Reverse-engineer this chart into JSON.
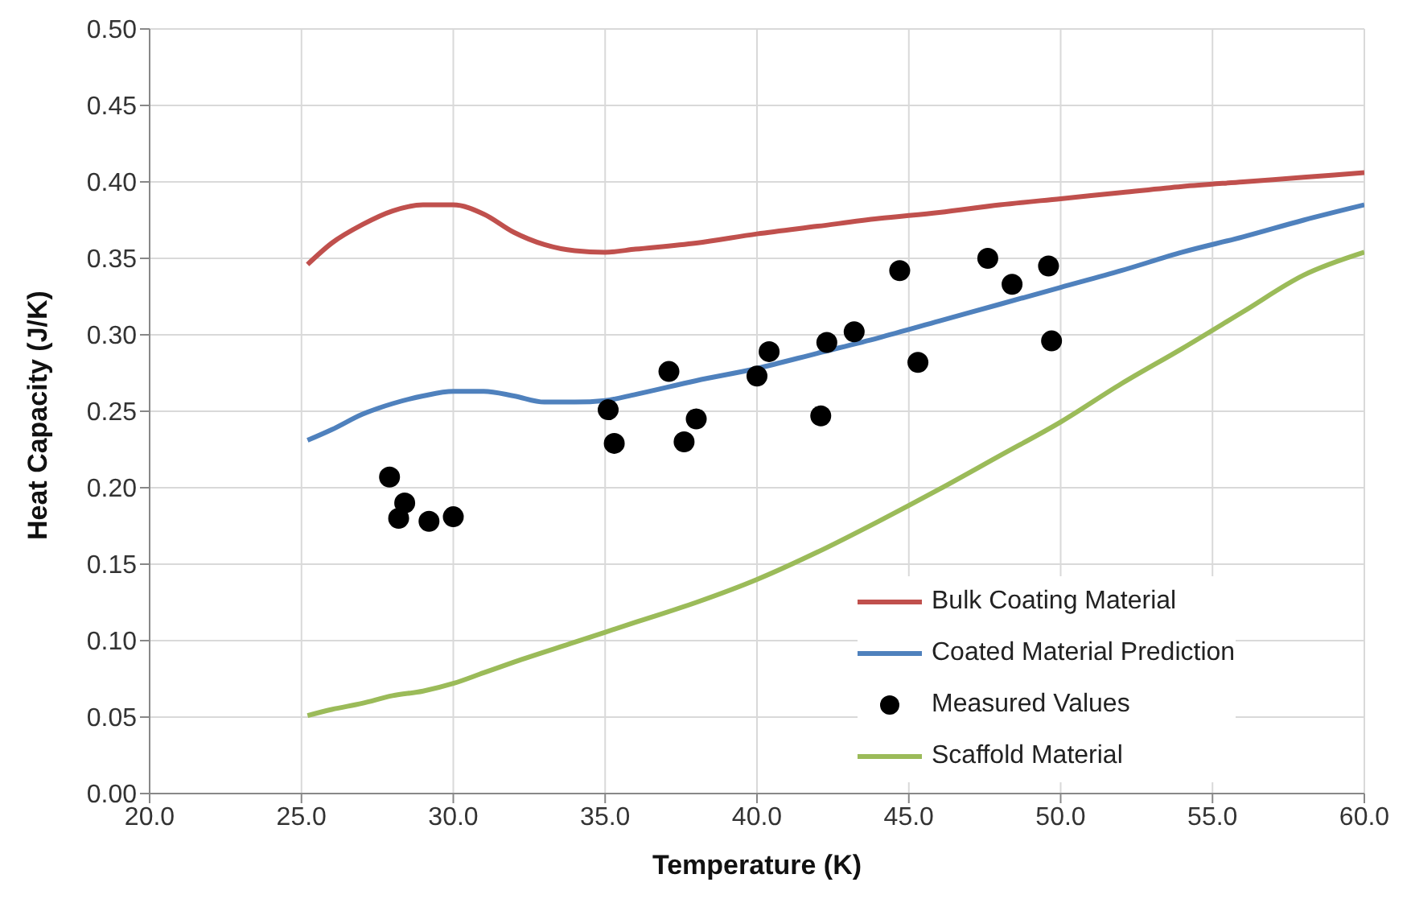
{
  "chart_data": {
    "type": "line",
    "xlabel": "Temperature (K)",
    "ylabel": "Heat Capacity  (J/K)",
    "xlim": [
      20,
      60
    ],
    "xticks": [
      {
        "value": 20,
        "label": "20.0"
      },
      {
        "value": 25,
        "label": "25.0"
      },
      {
        "value": 30,
        "label": "30.0"
      },
      {
        "value": 35,
        "label": "35.0"
      },
      {
        "value": 40,
        "label": "40.0"
      },
      {
        "value": 45,
        "label": "45.0"
      },
      {
        "value": 50,
        "label": "50.0"
      },
      {
        "value": 55,
        "label": "55.0"
      },
      {
        "value": 60,
        "label": "60.0"
      }
    ],
    "ylim": [
      0,
      0.5
    ],
    "yticks": [
      {
        "value": 0,
        "label": "0.00"
      },
      {
        "value": 0.05,
        "label": "0.05"
      },
      {
        "value": 0.1,
        "label": "0.10"
      },
      {
        "value": 0.15,
        "label": "0.15"
      },
      {
        "value": 0.2,
        "label": "0.20"
      },
      {
        "value": 0.25,
        "label": "0.25"
      },
      {
        "value": 0.3,
        "label": "0.30"
      },
      {
        "value": 0.35,
        "label": "0.35"
      },
      {
        "value": 0.4,
        "label": "0.40"
      },
      {
        "value": 0.45,
        "label": "0.45"
      },
      {
        "value": 0.5,
        "label": "0.50"
      }
    ],
    "grid": true,
    "legend": "bottom right",
    "marker": "none",
    "line_style": "solid",
    "series": [
      {
        "name": "Bulk Coating Material",
        "color": "#c0504d",
        "x": [
          25.2,
          26,
          27,
          28,
          29,
          30,
          31,
          32,
          33,
          34,
          35,
          36,
          38,
          40,
          42,
          44,
          46,
          48,
          50,
          52,
          54,
          56,
          58,
          60
        ],
        "values": [
          0.346,
          0.36,
          0.372,
          0.381,
          0.385,
          0.385,
          0.379,
          0.367,
          0.359,
          0.355,
          0.354,
          0.356,
          0.36,
          0.366,
          0.371,
          0.376,
          0.38,
          0.385,
          0.389,
          0.393,
          0.397,
          0.4,
          0.403,
          0.406
        ]
      },
      {
        "name": "Coated Material Prediction",
        "color": "#4f81bd",
        "x": [
          25.2,
          26,
          27,
          28,
          29,
          30,
          31,
          32,
          33,
          34,
          35,
          36,
          38,
          40,
          42,
          44,
          46,
          48,
          50,
          52,
          54,
          56,
          58,
          60
        ],
        "values": [
          0.231,
          0.238,
          0.248,
          0.255,
          0.26,
          0.263,
          0.263,
          0.26,
          0.256,
          0.256,
          0.257,
          0.261,
          0.27,
          0.278,
          0.288,
          0.298,
          0.309,
          0.32,
          0.331,
          0.342,
          0.354,
          0.364,
          0.375,
          0.385
        ]
      },
      {
        "name": "Measured Values",
        "type": "scatter",
        "color": "#000000",
        "marker": "circle",
        "x": [
          27.9,
          28.4,
          28.2,
          29.2,
          30.0,
          35.1,
          35.3,
          37.1,
          37.6,
          38.0,
          40.0,
          40.4,
          42.1,
          42.3,
          43.2,
          44.7,
          45.3,
          47.6,
          48.4,
          49.6,
          49.7
        ],
        "values": [
          0.207,
          0.19,
          0.18,
          0.178,
          0.181,
          0.251,
          0.229,
          0.276,
          0.23,
          0.245,
          0.273,
          0.289,
          0.247,
          0.295,
          0.302,
          0.342,
          0.282,
          0.35,
          0.333,
          0.345,
          0.296
        ]
      },
      {
        "name": "Scaffold Material",
        "color": "#9bbb59",
        "x": [
          25.2,
          26,
          27,
          28,
          29,
          30,
          31,
          32,
          34,
          36,
          38,
          40,
          42,
          44,
          46,
          48,
          50,
          52,
          54,
          56,
          58,
          60
        ],
        "values": [
          0.051,
          0.055,
          0.059,
          0.064,
          0.067,
          0.072,
          0.079,
          0.086,
          0.099,
          0.112,
          0.125,
          0.14,
          0.158,
          0.178,
          0.199,
          0.221,
          0.243,
          0.268,
          0.291,
          0.315,
          0.339,
          0.354
        ]
      }
    ]
  }
}
